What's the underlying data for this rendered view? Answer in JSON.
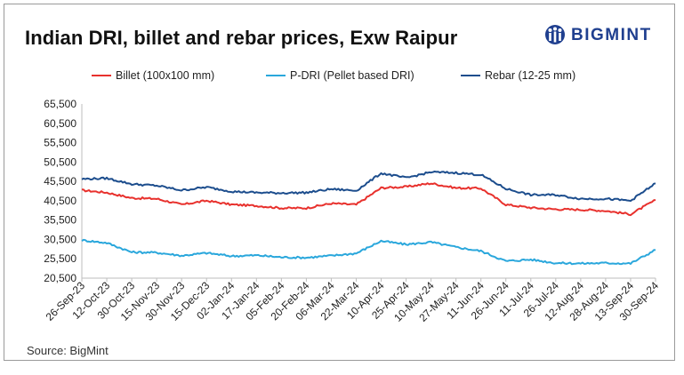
{
  "chart_data": {
    "type": "line",
    "title": "Indian DRI, billet and rebar prices, Exw Raipur",
    "xlabel": "",
    "ylabel": "",
    "ylim": [
      20500,
      65500
    ],
    "yticks": [
      "65,500",
      "60,500",
      "55,500",
      "50,500",
      "45,500",
      "40,500",
      "35,500",
      "30,500",
      "25,500",
      "20,500"
    ],
    "ytick_values": [
      65500,
      60500,
      55500,
      50500,
      45500,
      40500,
      35500,
      30500,
      25500,
      20500
    ],
    "x": [
      "26-Sep-23",
      "12-Oct-23",
      "30-Oct-23",
      "15-Nov-23",
      "30-Nov-23",
      "15-Dec-23",
      "02-Jan-24",
      "17-Jan-24",
      "05-Feb-24",
      "20-Feb-24",
      "06-Mar-24",
      "22-Mar-24",
      "10-Apr-24",
      "25-Apr-24",
      "10-May-24",
      "27-May-24",
      "11-Jun-24",
      "26-Jun-24",
      "11-Jul-24",
      "26-Jul-24",
      "12-Aug-24",
      "28-Aug-24",
      "13-Sep-24",
      "30-Sep-24"
    ],
    "grid": false,
    "legend": "top",
    "series": [
      {
        "name": "Billet (100x100 mm)",
        "color": "#e8312d",
        "values": [
          43200,
          42600,
          41200,
          41000,
          39500,
          40500,
          39500,
          39200,
          38600,
          38600,
          39800,
          39500,
          43800,
          44100,
          45000,
          43800,
          43700,
          39500,
          38700,
          38300,
          38200,
          37900,
          37000,
          40700
        ]
      },
      {
        "name": "P-DRI (Pellet based DRI)",
        "color": "#2aa7dc",
        "values": [
          30300,
          29600,
          27200,
          27100,
          26300,
          27000,
          26200,
          26400,
          25900,
          25800,
          26300,
          26900,
          30100,
          29200,
          29800,
          28500,
          27500,
          24900,
          25300,
          24400,
          24300,
          24400,
          24300,
          27800
        ]
      },
      {
        "name": "Rebar (12-25 mm)",
        "color": "#1c4d8d",
        "values": [
          46100,
          46300,
          44800,
          44400,
          43200,
          44000,
          42900,
          42600,
          42500,
          42600,
          43500,
          43100,
          47600,
          46400,
          47900,
          47700,
          47200,
          43600,
          42000,
          42000,
          41000,
          41000,
          40500,
          45000
        ]
      }
    ]
  },
  "brand": {
    "name": "BIGMINT"
  },
  "source": "Source: BigMint"
}
